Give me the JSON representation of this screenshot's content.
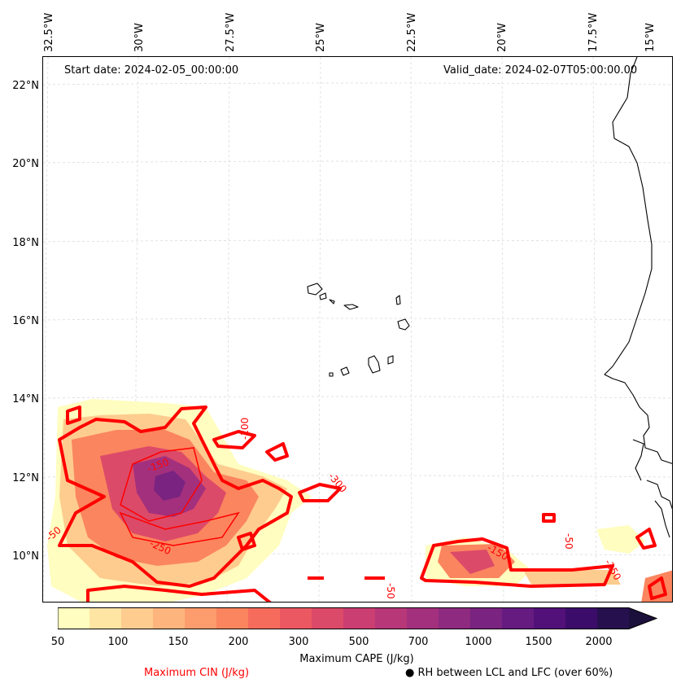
{
  "header": {
    "start_date": "Start date: 2024-02-05_00:00:00",
    "valid_date": "Valid_date: 2024-02-07T05:00:00.00"
  },
  "longitude_labels": [
    "32.5°W",
    "30°W",
    "27.5°W",
    "25°W",
    "22.5°W",
    "20°W",
    "17.5°W",
    "15°W"
  ],
  "latitude_labels": [
    "22°N",
    "20°N",
    "18°N",
    "16°N",
    "14°N",
    "12°N",
    "10°N"
  ],
  "cin_contour_labels": [
    "-50",
    "-150",
    "-250",
    "-100",
    "-300",
    "-50",
    "-150",
    "-50",
    "-250"
  ],
  "colorbar": {
    "title": "Maximum CAPE (J/kg)",
    "tick_labels": [
      "50",
      "100",
      "150",
      "200",
      "300",
      "500",
      "700",
      "1000",
      "1500",
      "2000"
    ],
    "colors": [
      "#fffdbf",
      "#fee5a3",
      "#fecc8f",
      "#feb57d",
      "#fd9c6c",
      "#fb855e",
      "#f66c5c",
      "#ec5861",
      "#dc4a69",
      "#cb3e72",
      "#b73779",
      "#a3307d",
      "#8e2a7f",
      "#7a2380",
      "#661b80",
      "#521179",
      "#3c0c6a",
      "#27104e",
      "#1b0f3b"
    ]
  },
  "legend": {
    "cin_label": "Maximum CIN (J/kg)",
    "rh_label": "RH between LCL and LFC (over 60%)"
  },
  "colors": {
    "cin_contour": "#ff0000",
    "coastline": "#000000",
    "gridline": "#cccccc"
  }
}
